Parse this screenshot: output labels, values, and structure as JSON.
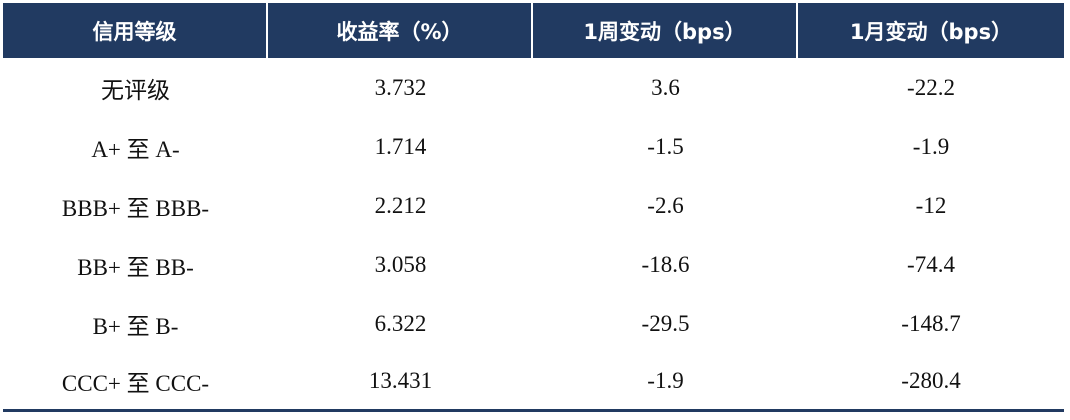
{
  "table": {
    "headers": [
      "信用等级",
      "收益率（%）",
      "1周变动（bps）",
      "1月变动（bps）"
    ],
    "rows": [
      [
        "无评级",
        "3.732",
        "3.6",
        "-22.2"
      ],
      [
        "A+ 至 A-",
        "1.714",
        "-1.5",
        "-1.9"
      ],
      [
        "BBB+ 至 BBB-",
        "2.212",
        "-2.6",
        "-12"
      ],
      [
        "BB+ 至 BB-",
        "3.058",
        "-18.6",
        "-74.4"
      ],
      [
        "B+ 至 B-",
        "6.322",
        "-29.5",
        "-148.7"
      ],
      [
        "CCC+ 至 CCC-",
        "13.431",
        "-1.9",
        "-280.4"
      ]
    ]
  },
  "colors": {
    "header_bg": "#213a61",
    "header_text": "#ffffff",
    "body_text": "#111111"
  }
}
